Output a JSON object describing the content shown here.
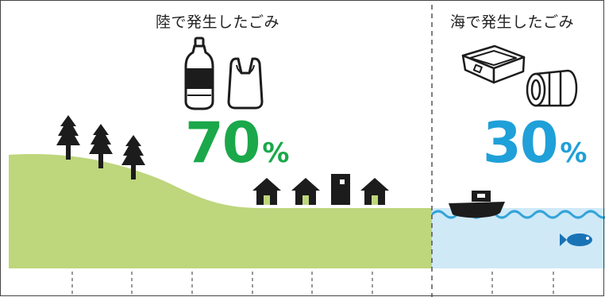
{
  "land": {
    "title": "陸で発生したごみ",
    "percent_value": "70",
    "percent_unit": "%",
    "color": "#1aa84a"
  },
  "sea": {
    "title": "海で発生したごみ",
    "percent_value": "30",
    "percent_unit": "%",
    "color": "#1fa0d8"
  },
  "colors": {
    "hill": "#bed67c",
    "water": "#cfe9f7",
    "wave": "#33a3d9",
    "fish": "#1873b6",
    "silhouette": "#1c1c1c"
  },
  "icons": [
    "plastic-bottle-icon",
    "plastic-bag-icon",
    "styrofoam-box-icon",
    "drum-can-icon",
    "tree-icon",
    "house-icon",
    "building-icon",
    "fishing-boat-icon",
    "fish-icon"
  ]
}
